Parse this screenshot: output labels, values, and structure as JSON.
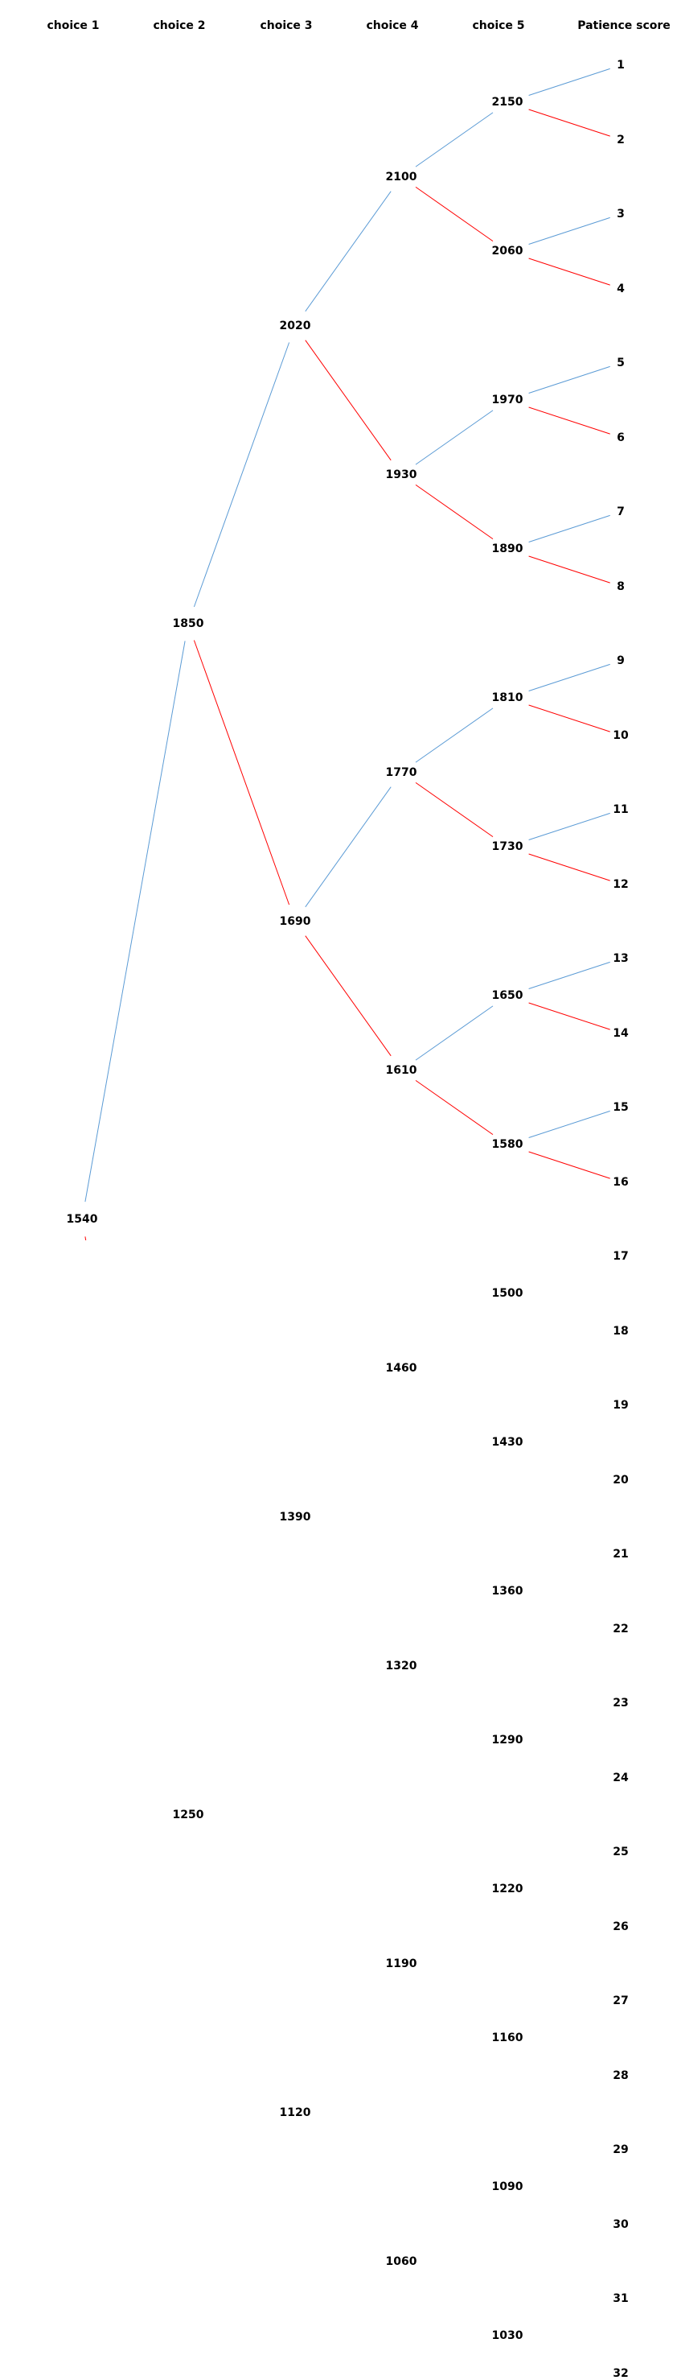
{
  "headers": [
    "choice 1",
    "choice 2",
    "choice 3",
    "choice 4",
    "choice 5",
    "Patience score"
  ],
  "colors": {
    "upper_branch": "#5b9bd5",
    "lower_branch": "#ff0000",
    "text": "#000000"
  },
  "tree": {
    "level1": [
      "1540"
    ],
    "level2": [
      "1850",
      "1250"
    ],
    "level3": [
      "2020",
      "1690",
      "1390",
      "1120"
    ],
    "level4": [
      "2100",
      "1930",
      "1770",
      "1610",
      "1460",
      "1320",
      "1190",
      "1060"
    ],
    "level5": [
      "2150",
      "2060",
      "1970",
      "1890",
      "1810",
      "1730",
      "1650",
      "1580",
      "1500",
      "1430",
      "1360",
      "1290",
      "1220",
      "1160",
      "1090",
      "1030"
    ],
    "scores": [
      "1",
      "2",
      "3",
      "4",
      "5",
      "6",
      "7",
      "8",
      "9",
      "10",
      "11",
      "12",
      "13",
      "14",
      "15",
      "16",
      "17",
      "18",
      "19",
      "20",
      "21",
      "22",
      "23",
      "24",
      "25",
      "26",
      "27",
      "28",
      "29",
      "30",
      "31",
      "32"
    ]
  }
}
